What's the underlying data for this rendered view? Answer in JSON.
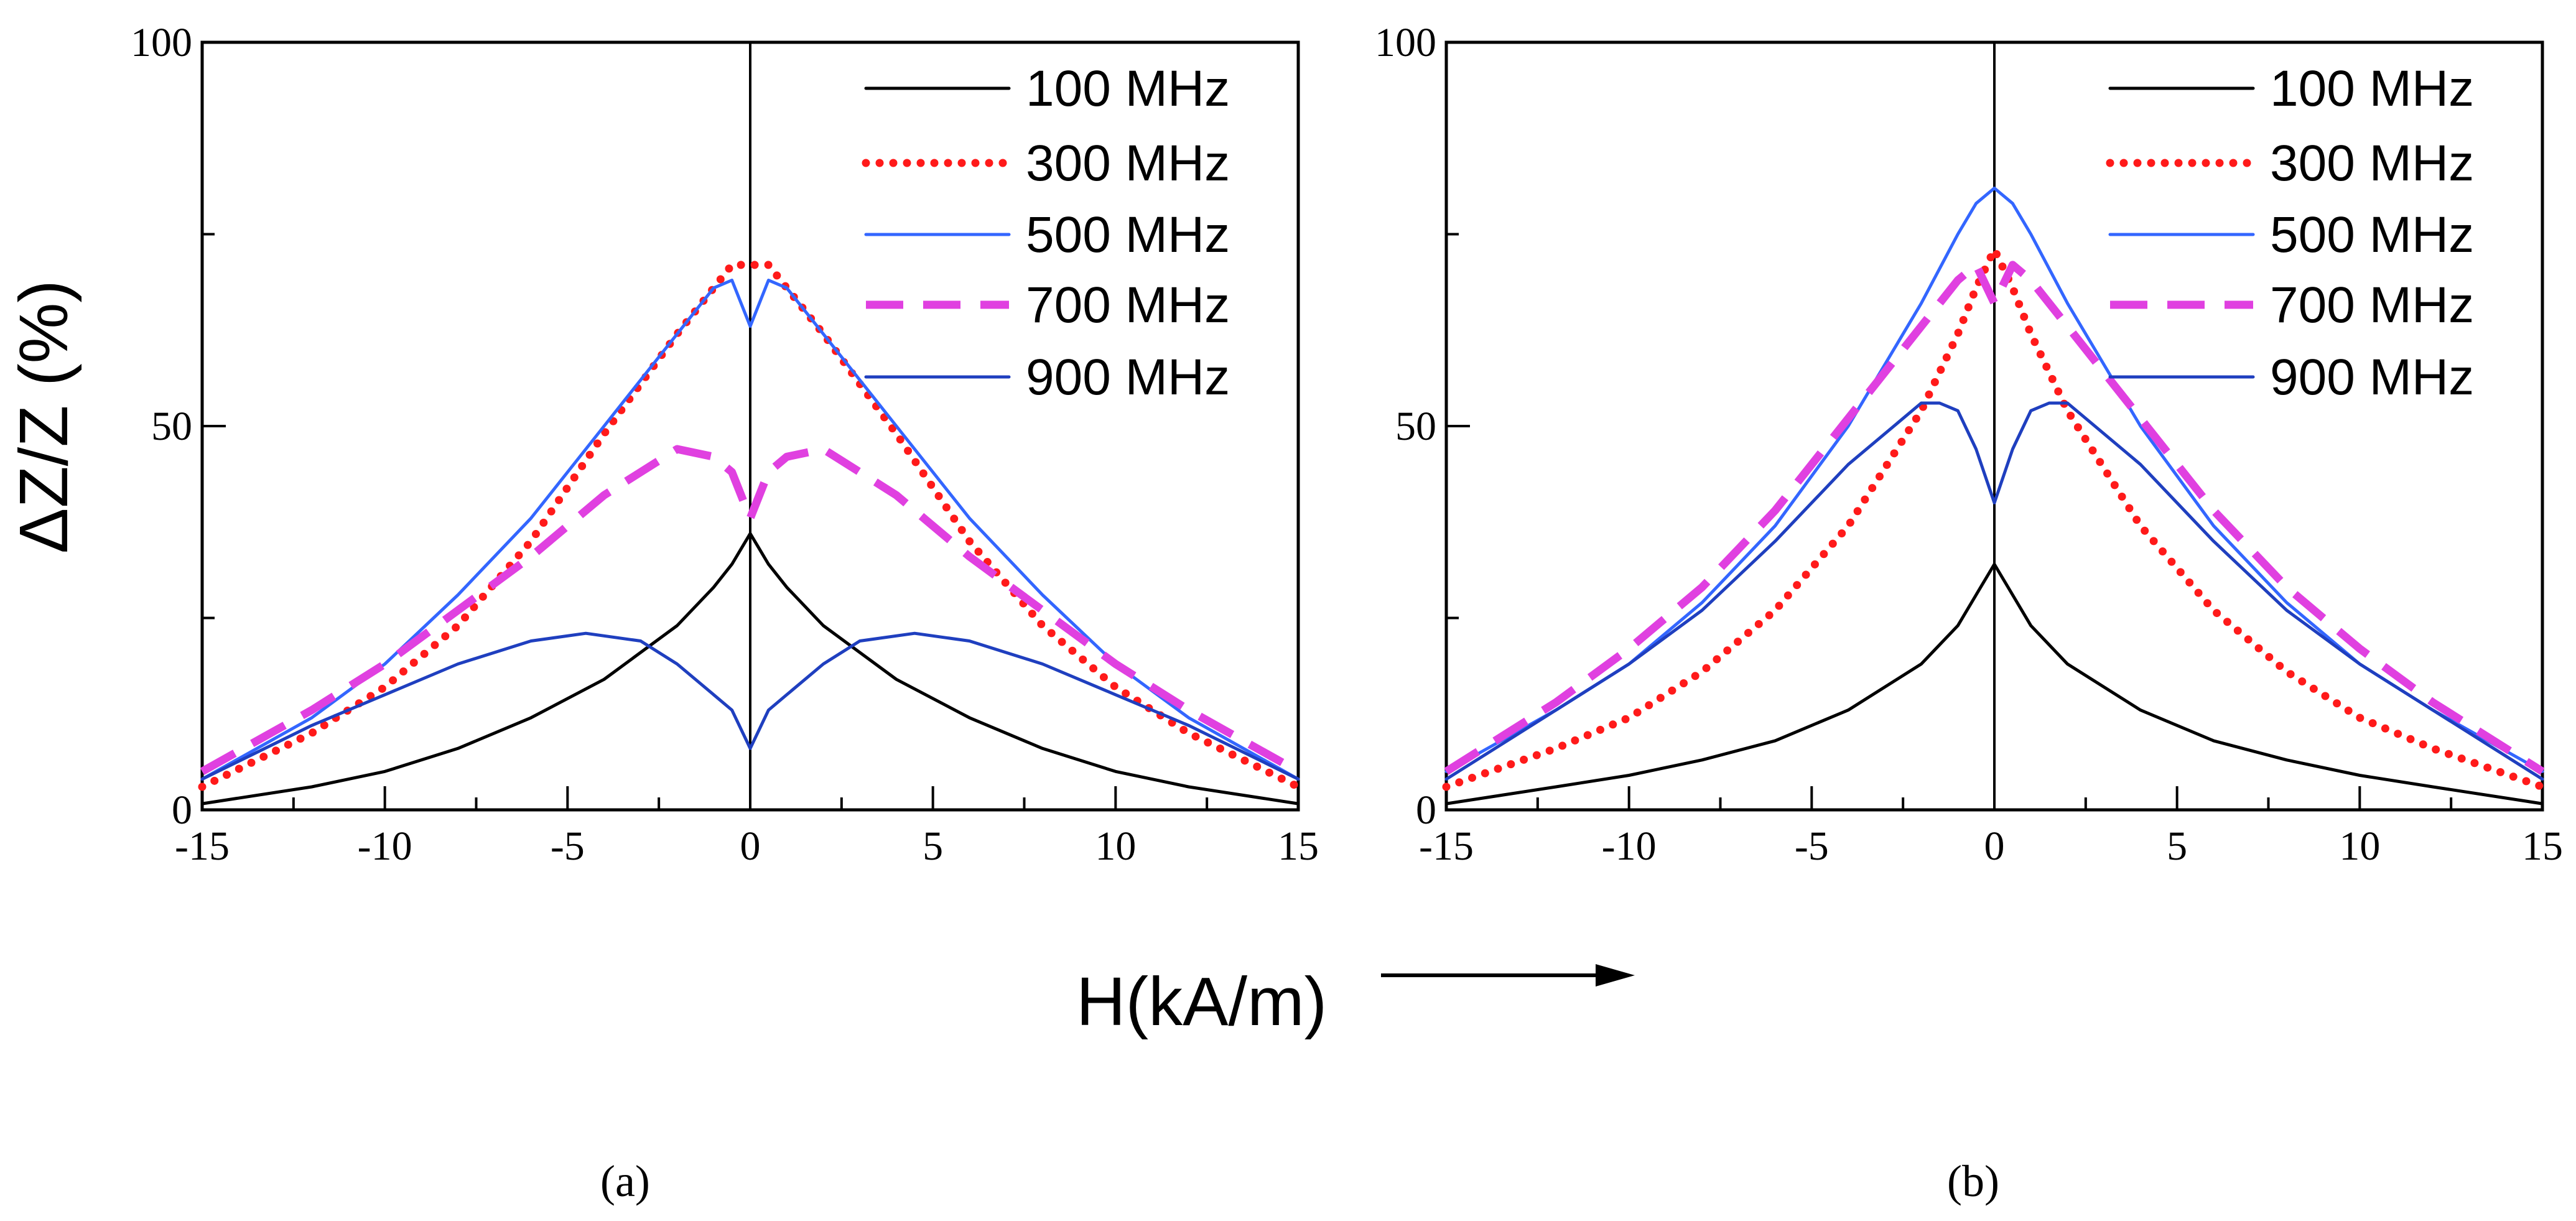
{
  "figure": {
    "xlabel": "H(kA/m)",
    "ylabel": "ΔZ/Z (%)",
    "captions": [
      "(a)",
      "(b)"
    ]
  },
  "chart_data": [
    {
      "type": "line",
      "panel": "(a)",
      "xlim": [
        -15,
        15
      ],
      "ylim": [
        0,
        100
      ],
      "x_ticks": [
        -15,
        -10,
        -5,
        0,
        5,
        10,
        15
      ],
      "y_ticks": [
        0,
        50,
        100
      ],
      "xlabel": "H(kA/m)",
      "ylabel": "ΔZ/Z (%)",
      "legend_position": "top-right",
      "zero_line": true,
      "series": [
        {
          "name": "100 MHz",
          "color": "#000000",
          "style": "solid",
          "x": [
            -15,
            -12,
            -10,
            -8,
            -6,
            -4,
            -2,
            -1,
            -0.5,
            0,
            0.5,
            1,
            2,
            4,
            6,
            8,
            10,
            12,
            15
          ],
          "values": [
            0.8,
            3,
            5,
            8,
            12,
            17,
            24,
            29,
            32,
            36,
            32,
            29,
            24,
            17,
            12,
            8,
            5,
            3,
            0.8
          ]
        },
        {
          "name": "300 MHz",
          "color": "#ff1a1a",
          "style": "dotted",
          "x": [
            -15,
            -12,
            -10,
            -8,
            -6,
            -4,
            -2,
            -1,
            -0.5,
            0,
            0.5,
            1,
            2,
            4,
            6,
            8,
            10,
            12,
            15
          ],
          "values": [
            3,
            10,
            16,
            24,
            35,
            49,
            62,
            68,
            71,
            71,
            71,
            68,
            62,
            49,
            35,
            24,
            16,
            10,
            3
          ]
        },
        {
          "name": "500 MHz",
          "color": "#3366ff",
          "style": "solid",
          "x": [
            -15,
            -12,
            -10,
            -8,
            -6,
            -4,
            -2,
            -1,
            -0.5,
            0,
            0.5,
            1,
            2,
            4,
            6,
            8,
            10,
            12,
            15
          ],
          "values": [
            4,
            12,
            19,
            28,
            38,
            50,
            62,
            68,
            69,
            63,
            69,
            68,
            62,
            50,
            38,
            28,
            19,
            12,
            4
          ]
        },
        {
          "name": "700 MHz",
          "color": "#e040e0",
          "style": "dashed",
          "x": [
            -15,
            -12,
            -10,
            -8,
            -6,
            -4,
            -2,
            -1,
            -0.5,
            0,
            0.5,
            1,
            2,
            4,
            6,
            8,
            10,
            12,
            15
          ],
          "values": [
            5,
            13,
            19,
            26,
            33,
            41,
            47,
            46,
            44,
            38,
            44,
            46,
            47,
            41,
            33,
            26,
            19,
            13,
            5
          ]
        },
        {
          "name": "900 MHz",
          "color": "#1f3fbf",
          "style": "solid",
          "x": [
            -15,
            -12,
            -10,
            -8,
            -6,
            -4.5,
            -3,
            -2,
            -1,
            -0.5,
            0,
            0.5,
            1,
            2,
            3,
            4.5,
            6,
            8,
            10,
            12,
            15
          ],
          "values": [
            4,
            11,
            15,
            19,
            22,
            23,
            22,
            19,
            15,
            13,
            8,
            13,
            15,
            19,
            22,
            23,
            22,
            19,
            15,
            11,
            4
          ]
        }
      ]
    },
    {
      "type": "line",
      "panel": "(b)",
      "xlim": [
        -15,
        15
      ],
      "ylim": [
        0,
        100
      ],
      "x_ticks": [
        -15,
        -10,
        -5,
        0,
        5,
        10,
        15
      ],
      "y_ticks": [
        0,
        50,
        100
      ],
      "xlabel": "H(kA/m)",
      "ylabel": "ΔZ/Z (%)",
      "legend_position": "top-right",
      "zero_line": true,
      "series": [
        {
          "name": "100 MHz",
          "color": "#000000",
          "style": "solid",
          "x": [
            -15,
            -12,
            -10,
            -8,
            -6,
            -4,
            -2,
            -1,
            -0.5,
            0,
            0.5,
            1,
            2,
            4,
            6,
            8,
            10,
            12,
            15
          ],
          "values": [
            0.8,
            3,
            4.5,
            6.5,
            9,
            13,
            19,
            24,
            28,
            32,
            28,
            24,
            19,
            13,
            9,
            6.5,
            4.5,
            3,
            0.8
          ]
        },
        {
          "name": "300 MHz",
          "color": "#ff1a1a",
          "style": "dotted",
          "x": [
            -15,
            -12,
            -10,
            -8,
            -6,
            -4,
            -2,
            -1,
            -0.5,
            0,
            0.5,
            1,
            2,
            4,
            6,
            8,
            10,
            12,
            15
          ],
          "values": [
            3,
            8,
            12,
            18,
            26,
            37,
            52,
            62,
            68,
            73,
            68,
            62,
            52,
            37,
            26,
            18,
            12,
            8,
            3
          ]
        },
        {
          "name": "500 MHz",
          "color": "#3366ff",
          "style": "solid",
          "x": [
            -15,
            -12,
            -10,
            -8,
            -6,
            -4,
            -2,
            -1,
            -0.5,
            0,
            0.5,
            1,
            2,
            4,
            6,
            8,
            10,
            12,
            15
          ],
          "values": [
            5,
            13,
            19,
            27,
            37,
            50,
            66,
            75,
            79,
            81,
            79,
            75,
            66,
            50,
            37,
            27,
            19,
            13,
            5
          ]
        },
        {
          "name": "700 MHz",
          "color": "#e040e0",
          "style": "dashed",
          "x": [
            -15,
            -12,
            -10,
            -8,
            -6,
            -4,
            -2,
            -1,
            -0.5,
            0,
            0.5,
            1,
            2,
            4,
            6,
            8,
            10,
            12,
            15
          ],
          "values": [
            5,
            14,
            21,
            29,
            39,
            51,
            63,
            69,
            71,
            66,
            71,
            69,
            63,
            51,
            39,
            29,
            21,
            14,
            5
          ]
        },
        {
          "name": "900 MHz",
          "color": "#1f3fbf",
          "style": "solid",
          "x": [
            -15,
            -12,
            -10,
            -8,
            -6,
            -4,
            -2,
            -1.5,
            -1,
            -0.5,
            0,
            0.5,
            1,
            1.5,
            2,
            4,
            6,
            8,
            10,
            12,
            15
          ],
          "values": [
            4,
            13,
            19,
            26,
            35,
            45,
            53,
            53,
            52,
            47,
            40,
            47,
            52,
            53,
            53,
            45,
            35,
            26,
            19,
            13,
            4
          ]
        }
      ]
    }
  ]
}
